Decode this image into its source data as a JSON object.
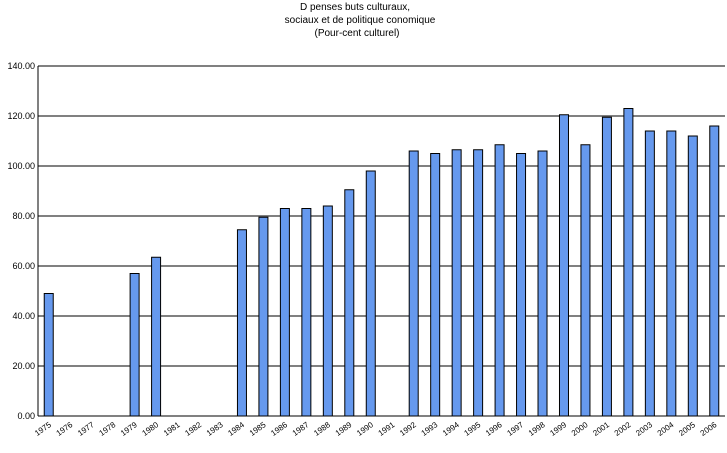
{
  "chart_data": {
    "type": "bar",
    "title_lines": [
      "D penses    buts culturaux,",
      "sociaux et de politique   conomique",
      "(Pour-cent culturel)"
    ],
    "xlabel": "",
    "ylabel": "",
    "ylim": [
      0,
      140
    ],
    "yticks": [
      "0.00",
      "20.00",
      "40.00",
      "60.00",
      "80.00",
      "100.00",
      "120.00",
      "140.00"
    ],
    "grid": true,
    "legend": "none",
    "bar_color": "#6699ee",
    "categories": [
      "1975",
      "1976",
      "1977",
      "1978",
      "1979",
      "1980",
      "1981",
      "1982",
      "1983",
      "1984",
      "1985",
      "1986",
      "1987",
      "1988",
      "1989",
      "1990",
      "1991",
      "1992",
      "1993",
      "1994",
      "1995",
      "1996",
      "1997",
      "1998",
      "1999",
      "2000",
      "2001",
      "2002",
      "2003",
      "2004",
      "2005",
      "2006"
    ],
    "values": [
      49,
      0,
      0,
      0,
      57,
      63.5,
      0,
      0,
      0,
      74.5,
      79.5,
      83,
      83,
      84,
      90.5,
      98,
      0,
      106,
      105,
      106.5,
      106.5,
      108.5,
      105,
      106,
      120.5,
      108.5,
      119.5,
      123,
      114,
      114,
      112,
      116
    ]
  }
}
